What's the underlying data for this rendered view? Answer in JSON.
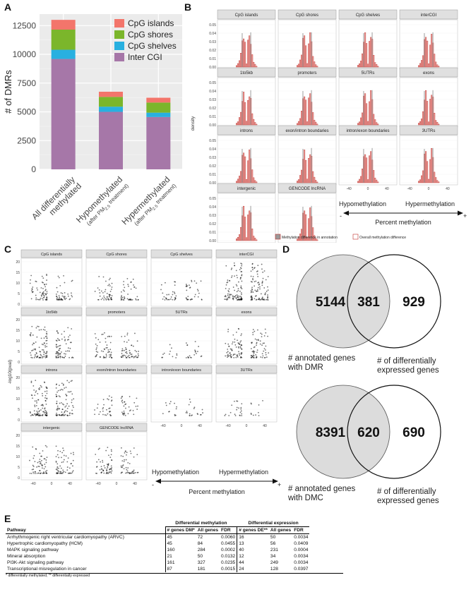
{
  "panels": {
    "a": "A",
    "b": "B",
    "c": "C",
    "d": "D",
    "e": "E"
  },
  "panel_a": {
    "chart_data": {
      "type": "bar",
      "stacked": true,
      "ylabel": "# of DMRs",
      "ylim": [
        0,
        13500
      ],
      "yticks": [
        0,
        2500,
        5000,
        7500,
        10000,
        12500
      ],
      "categories": [
        "All differentially methylated",
        "Hypomethylated (after PM2.5 treatment)",
        "Hypermethylated (after PM2.5 treatment)"
      ],
      "category_lines": [
        {
          "main": [
            "All differentially",
            "methylated"
          ],
          "sub": ""
        },
        {
          "main": [
            "Hypomethylated"
          ],
          "sub": "(after PM",
          "subscript": "2.5",
          "sub_end": " treatment)"
        },
        {
          "main": [
            "Hypermethylated"
          ],
          "sub": "(after PM",
          "subscript": "2.5",
          "sub_end": " treatment)"
        }
      ],
      "series": [
        {
          "name": "Inter CGI",
          "color": "#a677a8",
          "values": [
            9600,
            5000,
            4550
          ]
        },
        {
          "name": "CpG shelves",
          "color": "#28b0e0",
          "values": [
            800,
            450,
            380
          ]
        },
        {
          "name": "CpG shores",
          "color": "#7bb62b",
          "values": [
            1750,
            850,
            880
          ]
        },
        {
          "name": "CpG islands",
          "color": "#f3756b",
          "values": [
            850,
            450,
            420
          ]
        }
      ],
      "legend": [
        "CpG islands",
        "CpG shores",
        "CpG shelves",
        "Inter CGI"
      ],
      "legend_position": "top-right"
    }
  },
  "panel_b": {
    "ylabel": "density",
    "yticks": [
      "0.00",
      "0.01",
      "0.02",
      "0.03",
      "0.04",
      "0.05"
    ],
    "xticks": [
      "-40",
      "0",
      "40"
    ],
    "facets": [
      "CpG islands",
      "CpG shores",
      "CpG shelves",
      "interCGI",
      "1to5kb",
      "promoters",
      "5UTRs",
      "exons",
      "introns",
      "exon/intron boundaries",
      "intron/exon boundaries",
      "3UTRs",
      "intergenic",
      "GENCODE lncRNA"
    ],
    "legend": {
      "filled": "Methylation difference in annotation",
      "outline": "Overall methylation difference"
    },
    "arrow": {
      "left": "Hypomethylation",
      "right": "Hypermethylation",
      "minus": "-",
      "plus": "+",
      "caption": "Percent methylation"
    }
  },
  "panel_c": {
    "ylabel": "-log10(pval)",
    "yticks": [
      "0",
      "5",
      "10",
      "15",
      "20"
    ],
    "xticks": [
      "-40",
      "0",
      "40"
    ],
    "facets": [
      "CpG islands",
      "CpG shores",
      "CpG shelves",
      "interCGI",
      "1to5kb",
      "promoters",
      "5UTRs",
      "exons",
      "introns",
      "exon/intron boundaries",
      "intron/exon boundaries",
      "3UTRs",
      "intergenic",
      "GENCODE lncRNA"
    ],
    "arrow": {
      "left": "Hypomethylation",
      "right": "Hypermethylation",
      "minus": "-",
      "plus": "+",
      "caption": "Percent methylation"
    }
  },
  "panel_d": {
    "venn1": {
      "left": "5144",
      "overlap": "381",
      "right": "929",
      "left_label": [
        "# annotated genes",
        "with DMR"
      ],
      "right_label": [
        "# of differentially",
        "expressed genes"
      ]
    },
    "venn2": {
      "left": "8391",
      "overlap": "620",
      "right": "690",
      "left_label": [
        "# annotated genes",
        "with DMC"
      ],
      "right_label": [
        "# of differentially",
        "expressed genes"
      ]
    }
  },
  "panel_e": {
    "group_headers": {
      "dm": "Differential methylation",
      "de": "Differential expression"
    },
    "columns": [
      "Pathway",
      "# genes DM*",
      "All genes",
      "FDR",
      "# genes DE**",
      "All genes",
      "FDR"
    ],
    "rows": [
      [
        "Arrhythmogenic right ventricular cardiomyopathy (ARVC)",
        "45",
        "72",
        "0.0060",
        "16",
        "50",
        "0.0034"
      ],
      [
        "Hypertrophic cardiomyopathy (HCM)",
        "45",
        "84",
        "0.0455",
        "13",
        "56",
        "0.0409"
      ],
      [
        "MAPK signaling pathway",
        "160",
        "284",
        "0.0002",
        "40",
        "231",
        "0.0004"
      ],
      [
        "Mineral absorption",
        "21",
        "50",
        "0.0132",
        "12",
        "34",
        "0.0034"
      ],
      [
        "PI3K-Akt signaling pathway",
        "161",
        "327",
        "0.0235",
        "44",
        "249",
        "0.0034"
      ],
      [
        "Transcriptional misregulation in cancer",
        "87",
        "181",
        "0.0015",
        "24",
        "128",
        "0.0397"
      ]
    ],
    "footnote": "* differentially methylated; ** differentially expressed"
  },
  "colors": {
    "bar_fill": "#e8a3a0",
    "bar_edge": "#c0302a",
    "overlay": "#aaaaaa",
    "venn_fill": "#dddddd"
  }
}
